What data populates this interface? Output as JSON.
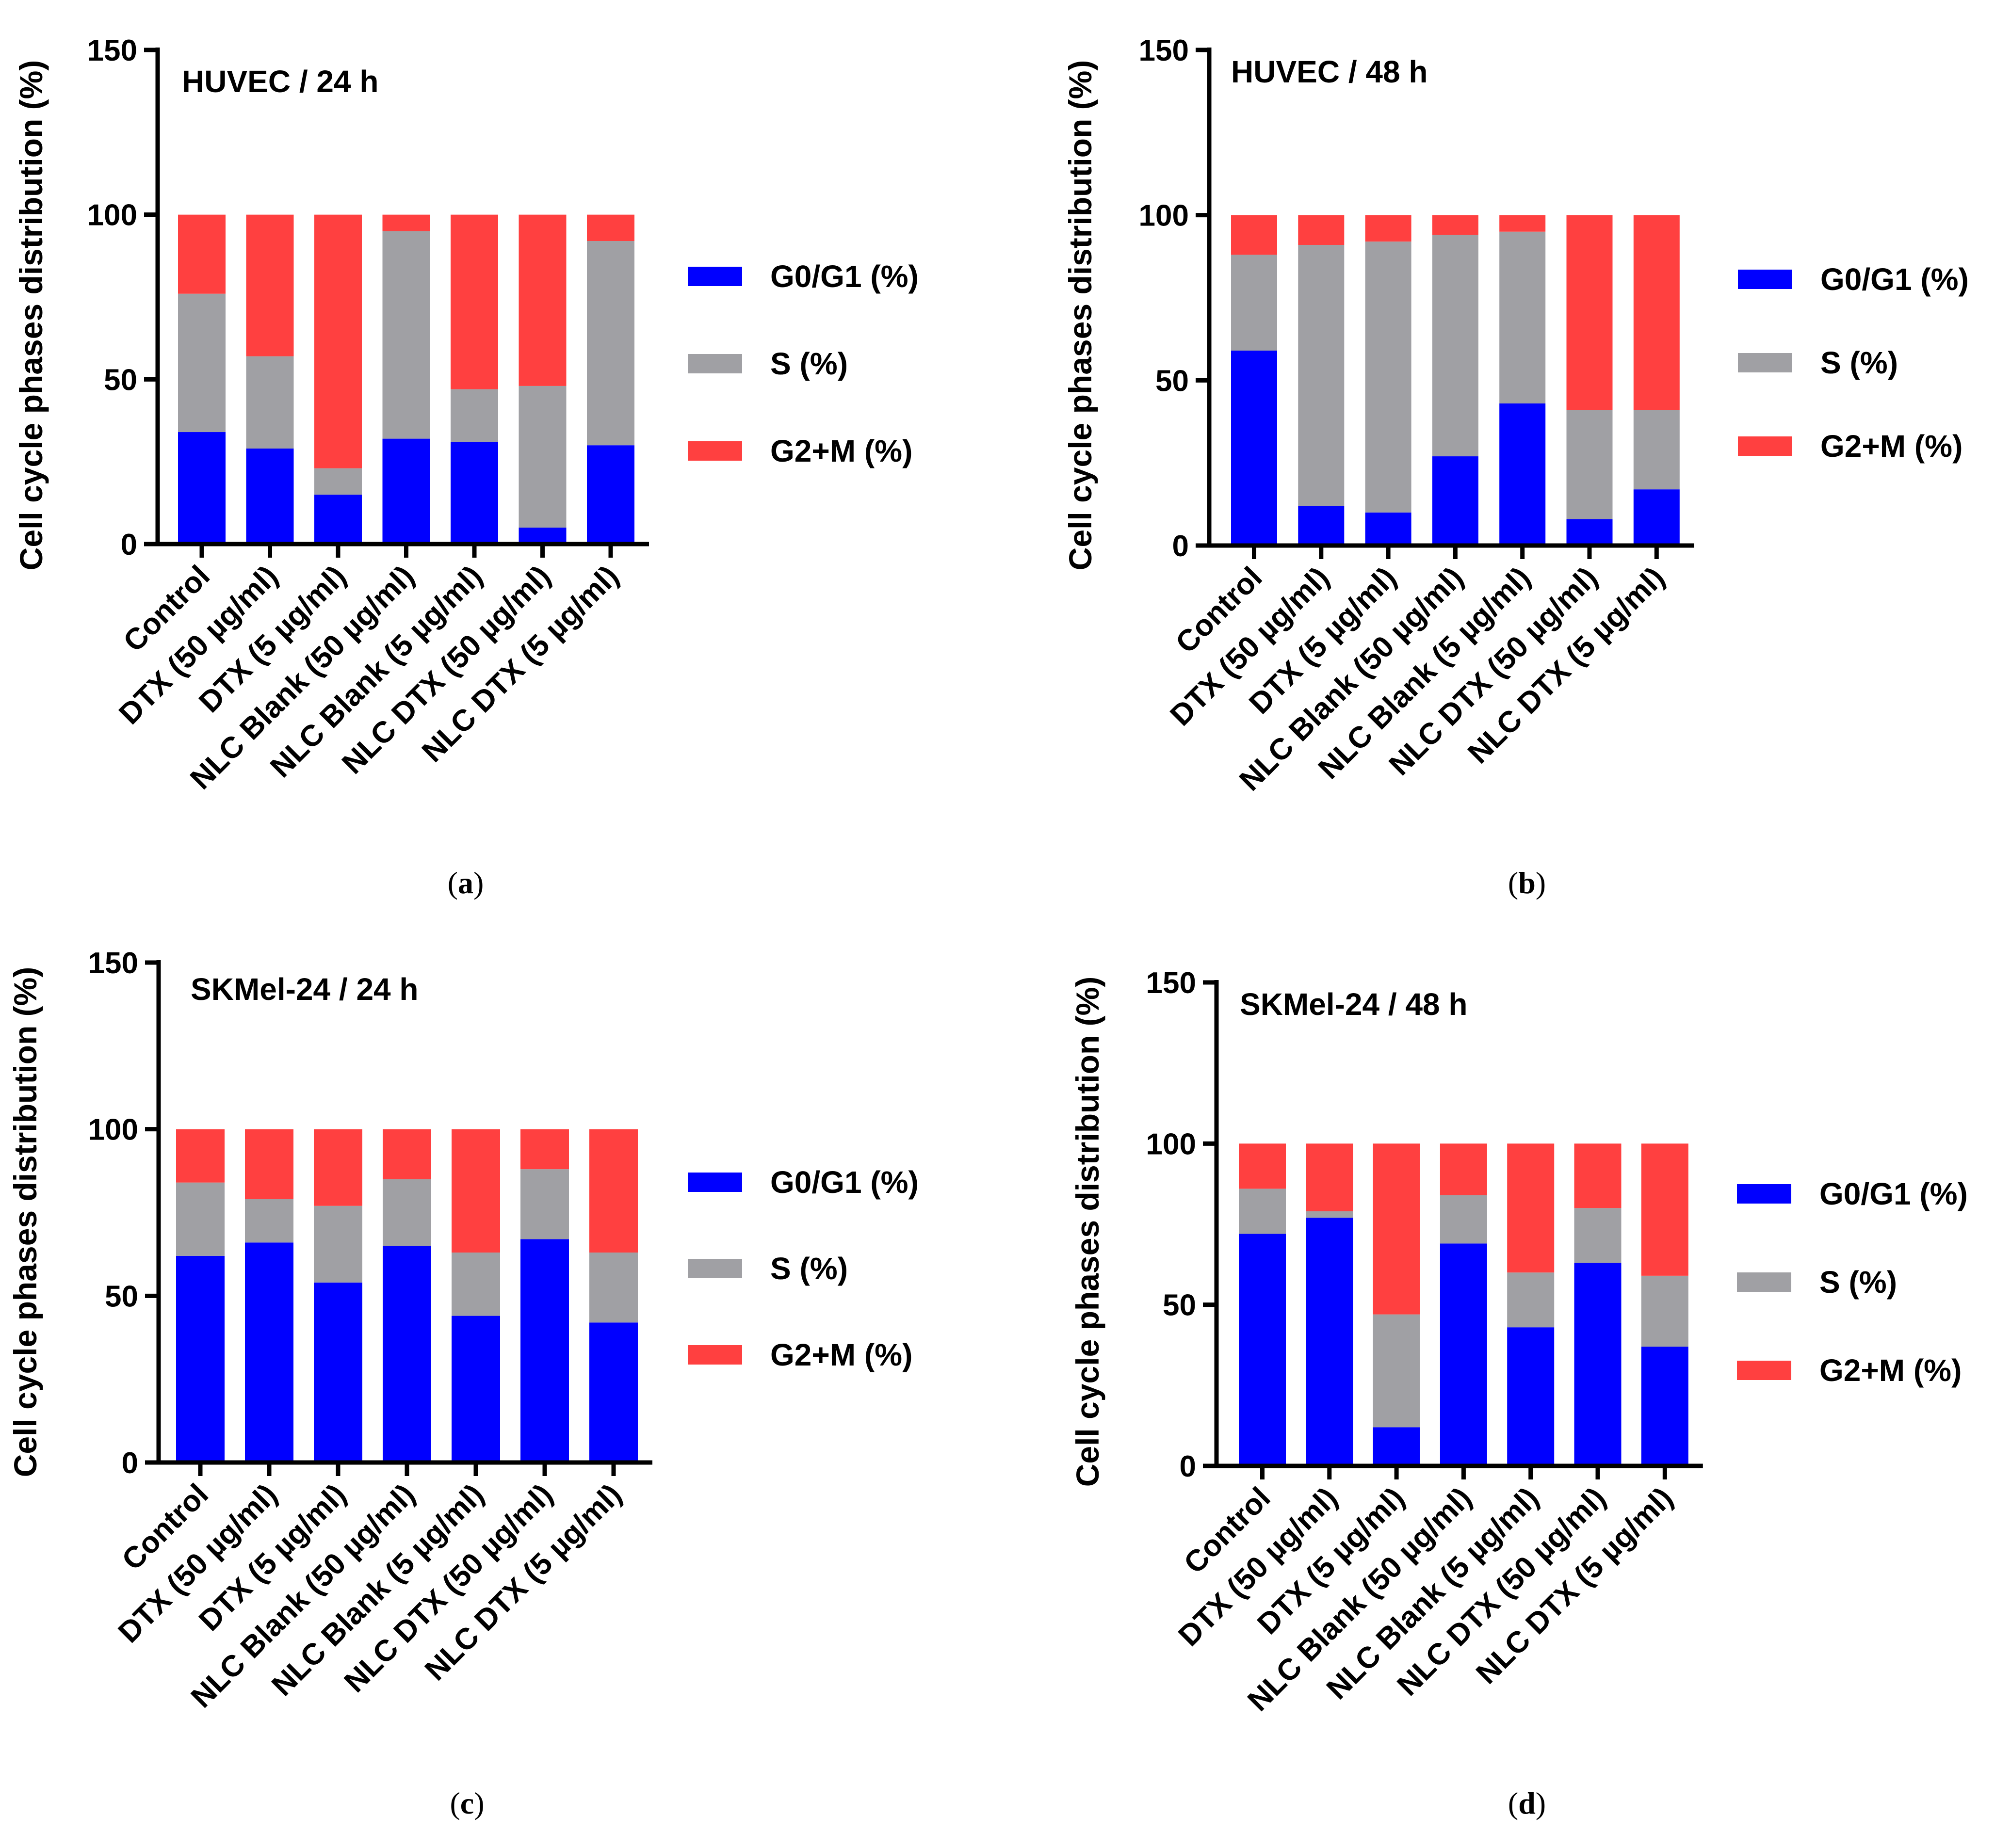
{
  "figure": {
    "colors": {
      "G0/G1 (%)": "#0000FF",
      "S (%)": "#A0A0A4",
      "G2+M (%)": "#FF4040"
    },
    "legend_labels": [
      "G0/G1 (%)",
      "S (%)",
      "G2+M (%)"
    ]
  },
  "chart_data": [
    {
      "type": "bar",
      "stacked": true,
      "panel": "a",
      "title": "HUVEC / 24 h",
      "ylabel": "Cell cycle phases distribution (%)",
      "ylim": [
        0,
        150
      ],
      "yticks": [
        0,
        50,
        100,
        150
      ],
      "categories": [
        "Control",
        "DTX (50 µg/ml)",
        "DTX (5 µg/ml)",
        "NLC Blank (50 µg/ml)",
        "NLC Blank (5 µg/ml)",
        "NLC DTX (50 µg/ml)",
        "NLC DTX (5 µg/ml)"
      ],
      "series": [
        {
          "name": "G0/G1 (%)",
          "values": [
            34,
            29,
            15,
            32,
            31,
            5,
            30
          ]
        },
        {
          "name": "S (%)",
          "values": [
            42,
            28,
            8,
            63,
            16,
            43,
            62
          ]
        },
        {
          "name": "G2+M (%)",
          "values": [
            24,
            43,
            77,
            5,
            53,
            52,
            8
          ]
        }
      ],
      "caption": "(a)"
    },
    {
      "type": "bar",
      "stacked": true,
      "panel": "b",
      "title": "HUVEC / 48 h",
      "ylabel": "Cell cycle phases distribution (%)",
      "ylim": [
        0,
        150
      ],
      "yticks": [
        0,
        50,
        100,
        150
      ],
      "categories": [
        "Control",
        "DTX (50 µg/ml)",
        "DTX (5 µg/ml)",
        "NLC Blank (50 µg/ml)",
        "NLC Blank (5 µg/ml)",
        "NLC DTX (50 µg/ml)",
        "NLC DTX (5 µg/ml)"
      ],
      "series": [
        {
          "name": "G0/G1 (%)",
          "values": [
            59,
            12,
            10,
            27,
            43,
            8,
            17
          ]
        },
        {
          "name": "S (%)",
          "values": [
            29,
            79,
            82,
            67,
            52,
            33,
            24
          ]
        },
        {
          "name": "G2+M (%)",
          "values": [
            12,
            9,
            8,
            6,
            5,
            59,
            59
          ]
        }
      ],
      "caption": "(b)"
    },
    {
      "type": "bar",
      "stacked": true,
      "panel": "c",
      "title": "SKMel-24 / 24 h",
      "ylabel": "Cell cycle phases distribution (%)",
      "ylim": [
        0,
        150
      ],
      "yticks": [
        0,
        50,
        100,
        150
      ],
      "categories": [
        "Control",
        "DTX (50 µg/ml)",
        "DTX (5 µg/ml)",
        "NLC Blank (50 µg/ml)",
        "NLC Blank (5 µg/ml)",
        "NLC DTX (50 µg/ml)",
        "NLC DTX (5 µg/ml)"
      ],
      "series": [
        {
          "name": "G0/G1 (%)",
          "values": [
            62,
            66,
            54,
            65,
            44,
            67,
            42
          ]
        },
        {
          "name": "S (%)",
          "values": [
            22,
            13,
            23,
            20,
            19,
            21,
            21
          ]
        },
        {
          "name": "G2+M (%)",
          "values": [
            16,
            21,
            23,
            15,
            37,
            12,
            37
          ]
        }
      ],
      "caption": "(c)"
    },
    {
      "type": "bar",
      "stacked": true,
      "panel": "d",
      "title": "SKMel-24 / 48 h",
      "ylabel": "Cell cycle phases distribution (%)",
      "ylim": [
        0,
        150
      ],
      "yticks": [
        0,
        50,
        100,
        150
      ],
      "categories": [
        "Control",
        "DTX (50 µg/ml)",
        "DTX (5 µg/ml)",
        "NLC Blank (50 µg/ml)",
        "NLC Blank (5 µg/ml)",
        "NLC DTX (50 µg/ml)",
        "NLC DTX (5 µg/ml)"
      ],
      "series": [
        {
          "name": "G0/G1 (%)",
          "values": [
            72,
            77,
            12,
            69,
            43,
            63,
            37
          ]
        },
        {
          "name": "S (%)",
          "values": [
            14,
            2,
            35,
            15,
            17,
            17,
            22
          ]
        },
        {
          "name": "G2+M (%)",
          "values": [
            14,
            21,
            53,
            16,
            40,
            20,
            41
          ]
        }
      ],
      "caption": "(d)"
    }
  ]
}
